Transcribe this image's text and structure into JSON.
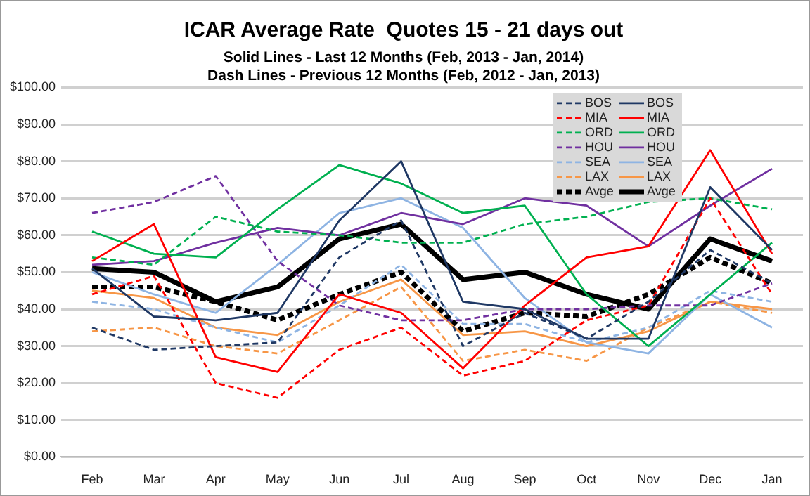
{
  "chart_data": {
    "type": "line",
    "title": "ICAR Average Rate  Quotes 15 - 21 days out",
    "subtitle": "Solid Lines - Last 12 Months (Feb, 2013 - Jan, 2014)\nDash Lines - Previous 12 Months (Feb, 2012 - Jan, 2013)",
    "categories": [
      "Feb",
      "Mar",
      "Apr",
      "May",
      "Jun",
      "Jul",
      "Aug",
      "Sep",
      "Oct",
      "Nov",
      "Dec",
      "Jan"
    ],
    "ylim": [
      0,
      100
    ],
    "yticks": [
      {
        "value": 0,
        "label": "$0.00"
      },
      {
        "value": 10,
        "label": "$10.00"
      },
      {
        "value": 20,
        "label": "$20.00"
      },
      {
        "value": 30,
        "label": "$30.00"
      },
      {
        "value": 40,
        "label": "$40.00"
      },
      {
        "value": 50,
        "label": "$50.00"
      },
      {
        "value": 60,
        "label": "$60.00"
      },
      {
        "value": 70,
        "label": "$70.00"
      },
      {
        "value": 80,
        "label": "$80.00"
      },
      {
        "value": 90,
        "label": "$90.00"
      },
      {
        "value": 100,
        "label": "$100.00"
      }
    ],
    "grid": "y",
    "legend": "top right",
    "marker": "none",
    "series": [
      {
        "name": "BOS",
        "color": "#1f3864",
        "line_style": "dashed",
        "values": [
          35,
          29,
          30,
          31,
          54,
          64,
          30,
          39,
          32,
          42,
          56,
          47
        ]
      },
      {
        "name": "BOS",
        "color": "#1f3864",
        "line_style": "solid",
        "values": [
          51,
          38,
          37,
          39,
          64,
          80,
          42,
          40,
          32,
          32,
          73,
          56
        ]
      },
      {
        "name": "MIA",
        "color": "#ff0000",
        "line_style": "dashed",
        "values": [
          44,
          49,
          20,
          16,
          29,
          35,
          22,
          26,
          37,
          41,
          70,
          44
        ]
      },
      {
        "name": "MIA",
        "color": "#ff0000",
        "line_style": "solid",
        "values": [
          53,
          63,
          27,
          23,
          44,
          39,
          24,
          41,
          54,
          57,
          83,
          55
        ]
      },
      {
        "name": "ORD",
        "color": "#00b050",
        "line_style": "dashed",
        "values": [
          54,
          52,
          65,
          61,
          60,
          58,
          58,
          63,
          65,
          69,
          70,
          67
        ]
      },
      {
        "name": "ORD",
        "color": "#00b050",
        "line_style": "solid",
        "values": [
          61,
          55,
          54,
          67,
          79,
          74,
          66,
          68,
          44,
          30,
          44,
          58
        ]
      },
      {
        "name": "HOU",
        "color": "#7030a0",
        "line_style": "dashed",
        "values": [
          66,
          69,
          76,
          53,
          41,
          37,
          37,
          40,
          40,
          41,
          41,
          47
        ]
      },
      {
        "name": "HOU",
        "color": "#7030a0",
        "line_style": "solid",
        "values": [
          52,
          53,
          58,
          62,
          60,
          66,
          63,
          70,
          68,
          57,
          68,
          78
        ]
      },
      {
        "name": "SEA",
        "color": "#8eb4e3",
        "line_style": "dashed",
        "values": [
          42,
          40,
          35,
          31,
          41,
          52,
          36,
          36,
          31,
          35,
          45,
          42
        ]
      },
      {
        "name": "SEA",
        "color": "#8eb4e3",
        "line_style": "solid",
        "values": [
          50,
          44,
          39,
          52,
          66,
          70,
          62,
          43,
          31,
          28,
          44,
          35
        ]
      },
      {
        "name": "LAX",
        "color": "#f79646",
        "line_style": "dashed",
        "values": [
          34,
          35,
          30,
          28,
          37,
          46,
          26,
          29,
          26,
          35,
          42,
          39
        ]
      },
      {
        "name": "LAX",
        "color": "#f79646",
        "line_style": "solid",
        "values": [
          45,
          43,
          35,
          33,
          42,
          48,
          33,
          34,
          30,
          34,
          42,
          40
        ]
      },
      {
        "name": "Avge",
        "color": "#000000",
        "line_style": "dashed",
        "values": [
          46,
          46,
          42,
          37,
          44,
          50,
          34,
          39,
          38,
          44,
          54,
          47
        ]
      },
      {
        "name": "Avge",
        "color": "#000000",
        "line_style": "solid",
        "values": [
          51,
          50,
          42,
          46,
          59,
          63,
          48,
          50,
          44,
          40,
          59,
          53
        ]
      }
    ]
  }
}
